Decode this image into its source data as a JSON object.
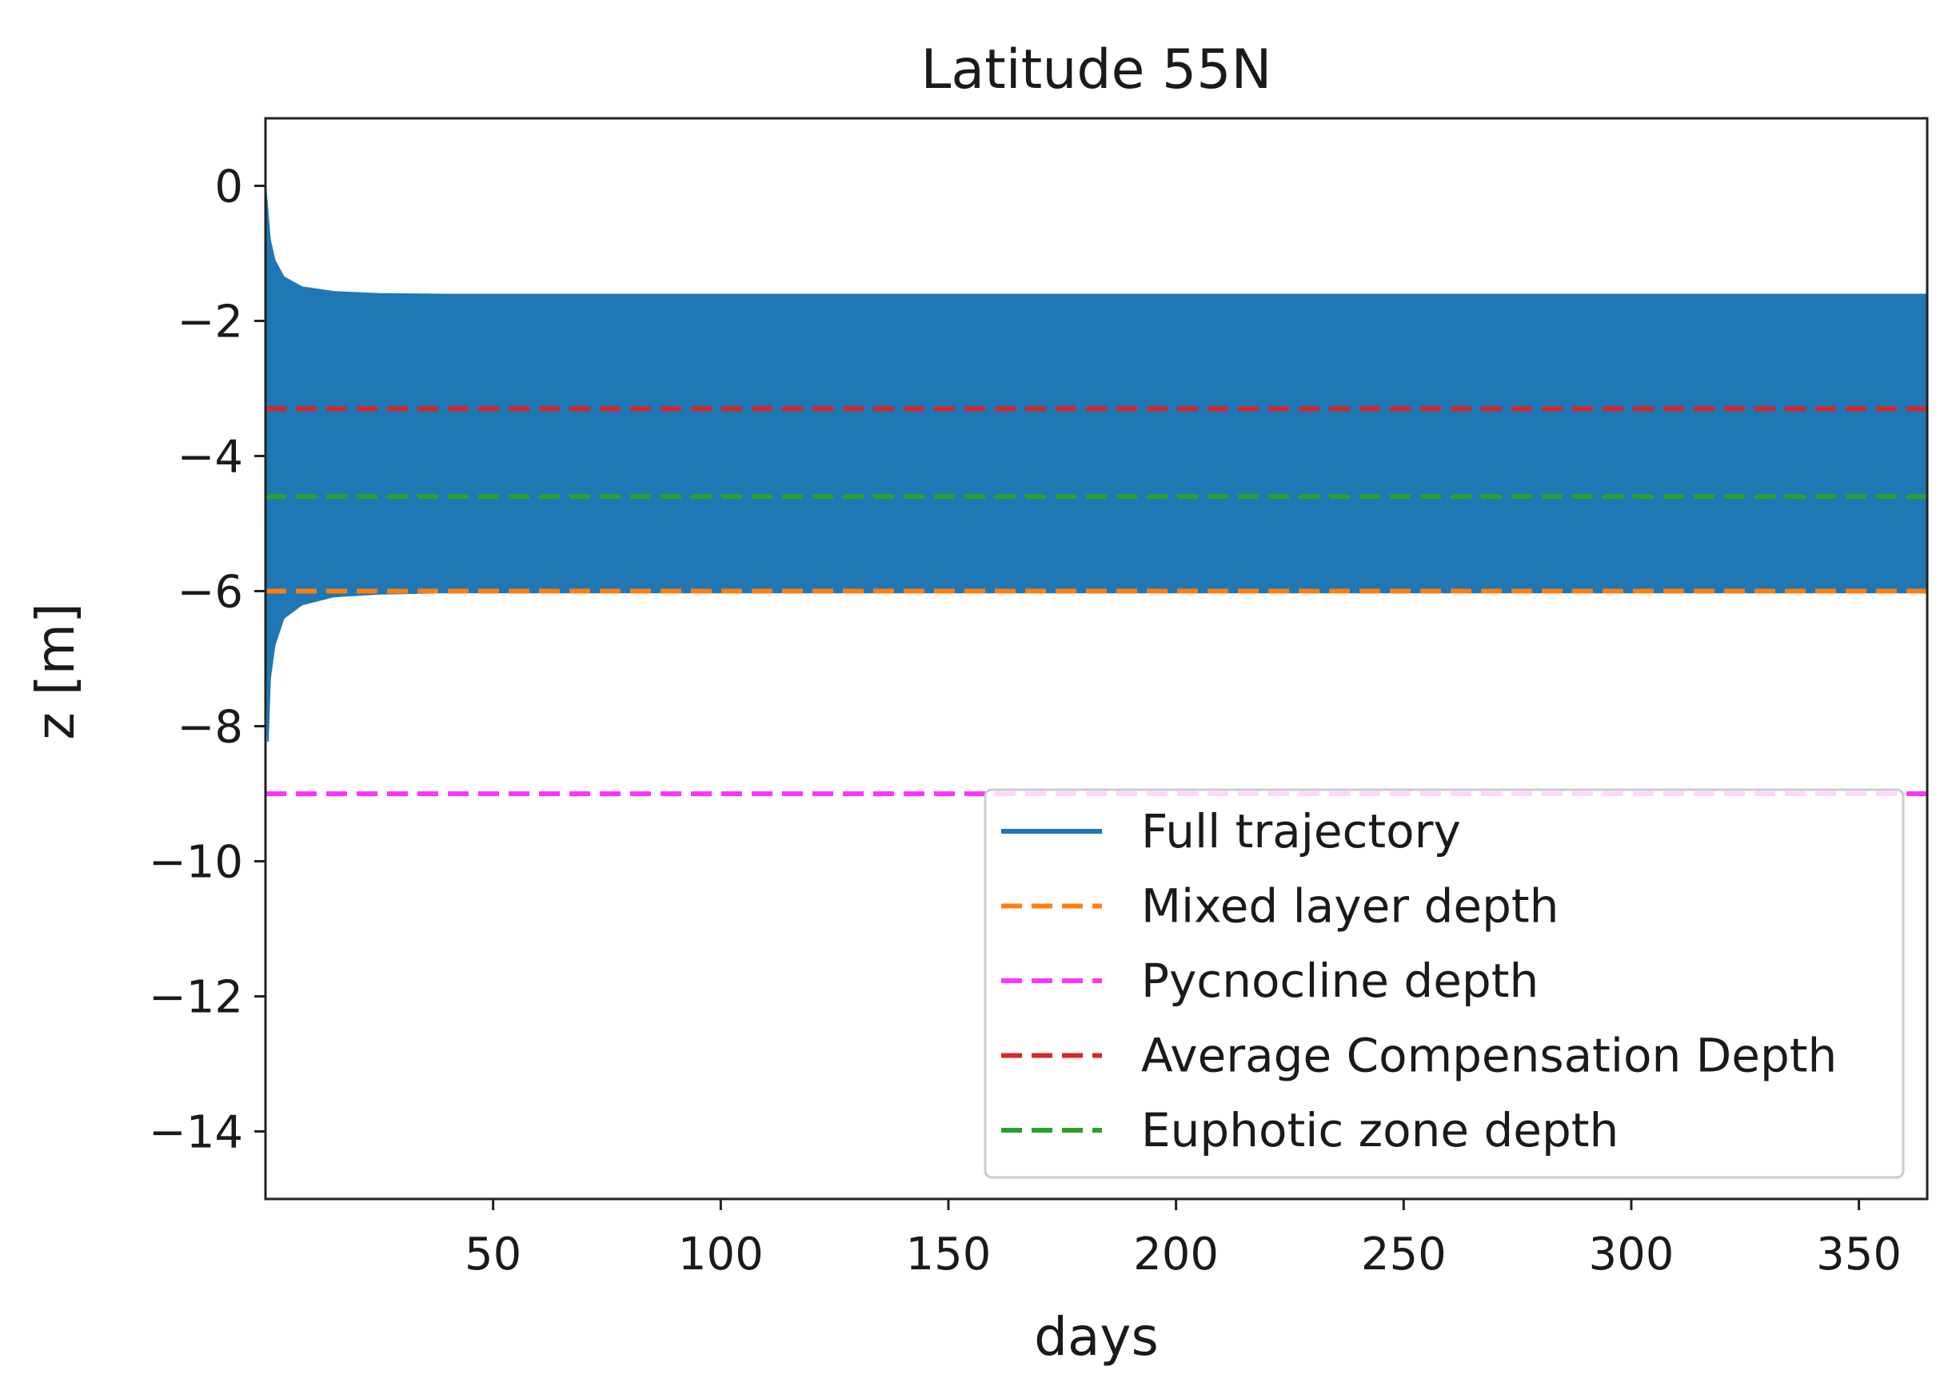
{
  "chart_data": {
    "type": "line",
    "title": "Latitude 55N",
    "xlabel": "days",
    "ylabel": "z [m]",
    "xlim": [
      0,
      365
    ],
    "ylim": [
      -15,
      1
    ],
    "xticks": [
      50,
      100,
      150,
      200,
      250,
      300,
      350
    ],
    "yticks": [
      0,
      -2,
      -4,
      -6,
      -8,
      -10,
      -12,
      -14
    ],
    "grid": false,
    "legend_position": "lower-right",
    "series": [
      {
        "name": "Full trajectory",
        "style": "solid",
        "color": "#1f77b4",
        "kind": "oscillating-envelope",
        "envelope_upper": {
          "x": [
            0,
            0.5,
            1,
            2,
            4,
            8,
            15,
            25,
            40,
            365
          ],
          "y": [
            0,
            -0.4,
            -0.8,
            -1.1,
            -1.35,
            -1.5,
            -1.57,
            -1.6,
            -1.61,
            -1.61
          ]
        },
        "envelope_lower": {
          "x": [
            0,
            0.5,
            1,
            2,
            4,
            8,
            15,
            25,
            40,
            365
          ],
          "y": [
            0,
            -8.3,
            -7.3,
            -6.8,
            -6.4,
            -6.2,
            -6.08,
            -6.04,
            -6.02,
            -6.02
          ]
        }
      },
      {
        "name": "Mixed layer depth",
        "style": "dashed",
        "color": "#ff7f0e",
        "value": -6.0
      },
      {
        "name": "Pycnocline depth",
        "style": "dashed",
        "color": "#ff33ff",
        "value": -9.0
      },
      {
        "name": "Average Compensation Depth",
        "style": "dashed",
        "color": "#d62728",
        "value": -3.3
      },
      {
        "name": "Euphotic zone depth",
        "style": "dashed",
        "color": "#2ca02c",
        "value": -4.6
      }
    ]
  }
}
